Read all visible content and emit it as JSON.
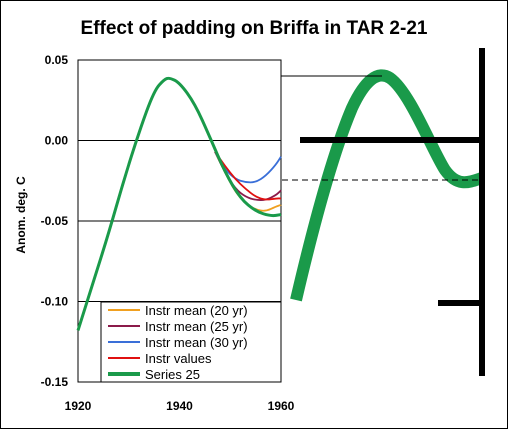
{
  "chart_data": {
    "type": "line",
    "title": "Effect of padding on Briffa in TAR 2-21",
    "xlabel": "",
    "ylabel": "Anom. deg. C",
    "xlim": [
      1920,
      1960
    ],
    "ylim": [
      -0.15,
      0.05
    ],
    "xticks": [
      "1920",
      "1940",
      "1960"
    ],
    "yticks": [
      "0.05",
      "0.00",
      "-0.05",
      "-0.10",
      "-0.15"
    ],
    "legend_position": "bottom-right",
    "series": [
      {
        "name": "Instr mean (20 yr)",
        "color": "#f0a020",
        "x": [
          1947,
          1949,
          1951,
          1953,
          1955,
          1957,
          1959,
          1960
        ],
        "y": [
          -0.007,
          -0.02,
          -0.032,
          -0.039,
          -0.043,
          -0.044,
          -0.041,
          -0.04
        ]
      },
      {
        "name": "Instr mean (25 yr)",
        "color": "#8b1a4a",
        "x": [
          1947,
          1949,
          1951,
          1953,
          1955,
          1957,
          1959,
          1960
        ],
        "y": [
          -0.007,
          -0.02,
          -0.03,
          -0.035,
          -0.037,
          -0.037,
          -0.034,
          -0.031
        ]
      },
      {
        "name": "Instr mean (30 yr)",
        "color": "#3a6fd8",
        "x": [
          1947,
          1949,
          1951,
          1953,
          1955,
          1957,
          1959,
          1960
        ],
        "y": [
          -0.007,
          -0.018,
          -0.024,
          -0.026,
          -0.026,
          -0.022,
          -0.015,
          -0.01
        ]
      },
      {
        "name": "Instr values",
        "color": "#e01010",
        "x": [
          1947,
          1949,
          1951,
          1953,
          1955,
          1957,
          1959,
          1960
        ],
        "y": [
          -0.007,
          -0.016,
          -0.024,
          -0.03,
          -0.035,
          -0.037,
          -0.036,
          -0.036
        ]
      },
      {
        "name": "Series 25",
        "color": "#1a9a4a",
        "x": [
          1920,
          1923,
          1926,
          1929,
          1932,
          1935,
          1937,
          1938,
          1940,
          1943,
          1946,
          1949,
          1952,
          1955,
          1958,
          1960
        ],
        "y": [
          -0.118,
          -0.088,
          -0.058,
          -0.025,
          0.005,
          0.031,
          0.038,
          0.039,
          0.036,
          0.023,
          0.002,
          -0.02,
          -0.036,
          -0.044,
          -0.047,
          -0.046
        ]
      }
    ]
  }
}
